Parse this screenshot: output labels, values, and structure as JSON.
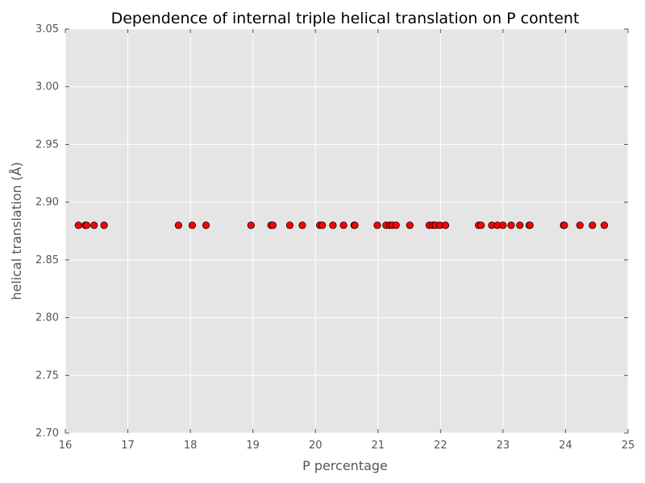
{
  "chart_data": {
    "type": "scatter",
    "title": "Dependence of internal triple helical translation on P content",
    "xlabel": "P percentage",
    "ylabel": "helical translation (Å)",
    "xlim": [
      16,
      25
    ],
    "ylim": [
      2.7,
      3.05
    ],
    "xticks": [
      "16",
      "17",
      "18",
      "19",
      "20",
      "21",
      "22",
      "23",
      "24",
      "25"
    ],
    "yticks": [
      "2.70",
      "2.75",
      "2.80",
      "2.85",
      "2.90",
      "2.95",
      "3.00",
      "3.05"
    ],
    "grid": true,
    "legend": "none",
    "series": [
      {
        "color": "#ff0000",
        "x": [
          16.21,
          16.32,
          16.34,
          16.46,
          16.62,
          17.81,
          18.03,
          18.25,
          18.97,
          19.29,
          19.32,
          19.59,
          19.79,
          20.07,
          20.11,
          20.28,
          20.45,
          20.62,
          20.63,
          20.99,
          21.13,
          21.19,
          21.23,
          21.29,
          21.51,
          21.82,
          21.88,
          21.92,
          21.99,
          22.08,
          22.61,
          22.65,
          22.82,
          22.91,
          23.0,
          23.13,
          23.27,
          23.42,
          23.43,
          23.97,
          23.98,
          24.23,
          24.43,
          24.62
        ],
        "y": [
          2.88,
          2.88,
          2.88,
          2.88,
          2.88,
          2.88,
          2.88,
          2.88,
          2.88,
          2.88,
          2.88,
          2.88,
          2.88,
          2.88,
          2.88,
          2.88,
          2.88,
          2.88,
          2.88,
          2.88,
          2.88,
          2.88,
          2.88,
          2.88,
          2.88,
          2.88,
          2.88,
          2.88,
          2.88,
          2.88,
          2.88,
          2.88,
          2.88,
          2.88,
          2.88,
          2.88,
          2.88,
          2.88,
          2.88,
          2.88,
          2.88,
          2.88,
          2.88,
          2.88
        ]
      }
    ]
  },
  "style": {
    "plot_background": "#e5e5e5",
    "grid_color": "#ffffff",
    "marker_edge": "#000000"
  }
}
